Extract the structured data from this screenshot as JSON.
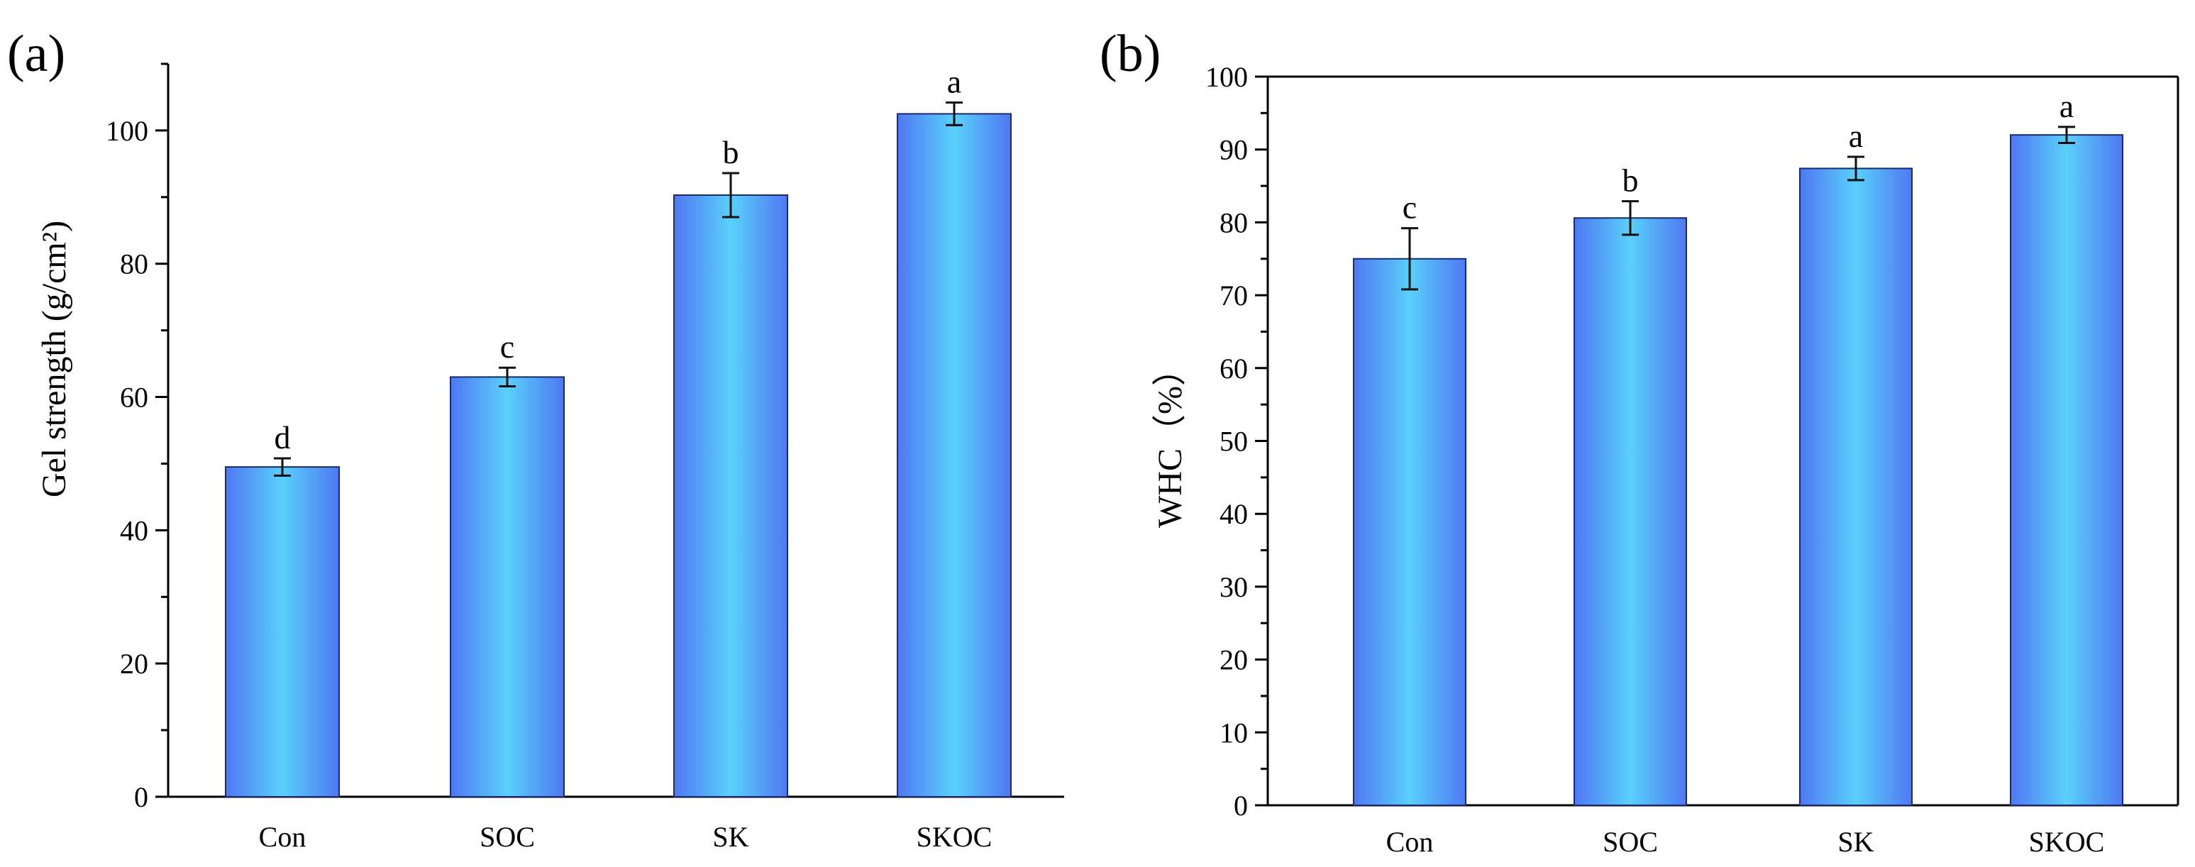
{
  "chart_data": [
    {
      "type": "bar",
      "panel_label": "(a)",
      "categories": [
        "Con",
        "SOC",
        "SK",
        "SKOC"
      ],
      "values": [
        49.5,
        63.0,
        90.3,
        102.5
      ],
      "errors": [
        1.3,
        1.4,
        3.3,
        1.7
      ],
      "significance": [
        "d",
        "c",
        "b",
        "a"
      ],
      "xlabel": "",
      "ylabel": "Gel strength (g/cm²)",
      "ylim": [
        0,
        110
      ],
      "yticks": [
        0,
        20,
        40,
        60,
        80,
        100
      ],
      "ytick_labels": [
        "0",
        "20",
        "40",
        "60",
        "80",
        "100"
      ],
      "minor_ytick_step": 10,
      "grid": false,
      "colors": {
        "bar_edge": "#4f78f2",
        "bar_center": "#5ad0fb",
        "bar_outline": "#1a2a6c",
        "axis": "#000000"
      }
    },
    {
      "type": "bar",
      "panel_label": "(b)",
      "categories": [
        "Con",
        "SOC",
        "SK",
        "SKOC"
      ],
      "values": [
        75.0,
        80.6,
        87.4,
        92.0
      ],
      "errors": [
        4.2,
        2.3,
        1.6,
        1.1
      ],
      "significance": [
        "c",
        "b",
        "a",
        "a"
      ],
      "xlabel": "",
      "ylabel": "WHC（%）",
      "ylim": [
        0,
        100
      ],
      "yticks": [
        0,
        10,
        20,
        30,
        40,
        50,
        60,
        70,
        80,
        90,
        100
      ],
      "ytick_labels": [
        "0",
        "10",
        "20",
        "30",
        "40",
        "50",
        "60",
        "70",
        "80",
        "90",
        "100"
      ],
      "minor_ytick_step": 5,
      "grid": false,
      "colors": {
        "bar_edge": "#4f78f2",
        "bar_center": "#5ad0fb",
        "bar_outline": "#1a2a6c",
        "axis": "#000000"
      }
    }
  ]
}
